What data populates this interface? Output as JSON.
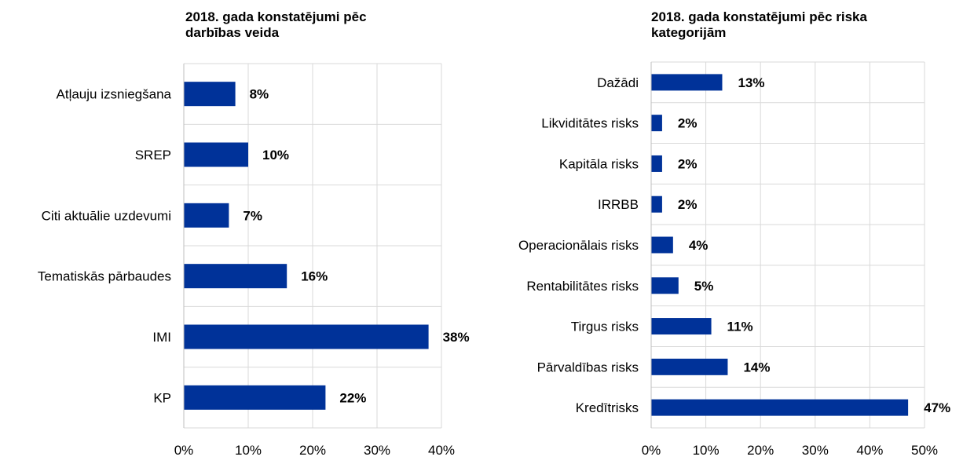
{
  "chart_data": [
    {
      "type": "bar",
      "orientation": "horizontal",
      "title": "2018. gada konstatējumi pēc darbības veida",
      "categories": [
        "Atļauju izsniegšana",
        "SREP",
        "Citi aktuālie uzdevumi",
        "Tematiskās pārbaudes",
        "IMI",
        "KP"
      ],
      "values": [
        8,
        10,
        7,
        16,
        38,
        22
      ],
      "value_labels": [
        "8%",
        "10%",
        "7%",
        "16%",
        "38%",
        "22%"
      ],
      "xlim": [
        0,
        40
      ],
      "xticks": [
        "0%",
        "10%",
        "20%",
        "30%",
        "40%"
      ],
      "grid": true,
      "bar_color": "#003299"
    },
    {
      "type": "bar",
      "orientation": "horizontal",
      "title": "2018. gada konstatējumi pēc riska kategorijām",
      "categories": [
        "Dažādi",
        "Likviditātes risks",
        "Kapitāla risks",
        "IRRBB",
        "Operacionālais risks",
        "Rentabilitātes risks",
        "Tirgus risks",
        "Pārvaldības risks",
        "Kredītrisks"
      ],
      "values": [
        13,
        2,
        2,
        2,
        4,
        5,
        11,
        14,
        47
      ],
      "value_labels": [
        "13%",
        "2%",
        "2%",
        "2%",
        "4%",
        "5%",
        "11%",
        "14%",
        "47%"
      ],
      "xlim": [
        0,
        50
      ],
      "xticks": [
        "0%",
        "10%",
        "20%",
        "30%",
        "40%",
        "50%"
      ],
      "grid": true,
      "bar_color": "#003299"
    }
  ]
}
